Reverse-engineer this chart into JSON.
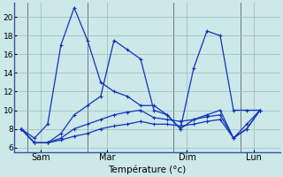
{
  "background_color": "#cce8e8",
  "line_color": "#1133bb",
  "grid_color": "#99bbbb",
  "ylim": [
    5.5,
    21.5
  ],
  "xlim": [
    -0.5,
    19.5
  ],
  "yticks": [
    6,
    8,
    10,
    12,
    14,
    16,
    18,
    20
  ],
  "xtick_positions": [
    1.5,
    6.5,
    12.5,
    17.5
  ],
  "xtick_labels": [
    "Sam",
    "Mar",
    "Dim",
    "Lun"
  ],
  "vline_positions": [
    0.5,
    5.0,
    11.5,
    16.5,
    19.5
  ],
  "xlabel": "Température (°c)",
  "line1_x": [
    0,
    1,
    2,
    3,
    4,
    5,
    6,
    7,
    8,
    9,
    10,
    11,
    12,
    13,
    14,
    15,
    16,
    17,
    18
  ],
  "line1_y": [
    8.0,
    7.0,
    8.5,
    17.0,
    21.0,
    17.5,
    13.0,
    12.0,
    11.5,
    10.5,
    10.5,
    9.5,
    8.0,
    14.5,
    18.5,
    18.0,
    10.0,
    10.0,
    10.0
  ],
  "line2_x": [
    0,
    1,
    2,
    3,
    4,
    5,
    6,
    7,
    8,
    9,
    10,
    11,
    12,
    13,
    14,
    15,
    16,
    17,
    18
  ],
  "line2_y": [
    8.0,
    6.5,
    6.5,
    7.5,
    9.5,
    10.5,
    11.5,
    17.5,
    16.5,
    15.5,
    10.0,
    9.5,
    8.0,
    9.0,
    9.5,
    10.0,
    7.0,
    8.0,
    10.0
  ],
  "line3_x": [
    0,
    1,
    2,
    3,
    4,
    5,
    6,
    7,
    8,
    9,
    10,
    11,
    12,
    13,
    14,
    15,
    16,
    17,
    18
  ],
  "line3_y": [
    8.0,
    6.5,
    6.5,
    7.0,
    8.0,
    8.5,
    9.0,
    9.5,
    9.8,
    10.0,
    9.2,
    9.0,
    8.8,
    9.0,
    9.3,
    9.5,
    7.0,
    8.5,
    10.0
  ],
  "line4_x": [
    0,
    1,
    2,
    3,
    4,
    5,
    6,
    7,
    8,
    9,
    10,
    11,
    12,
    13,
    14,
    15,
    16,
    17,
    18
  ],
  "line4_y": [
    8.0,
    6.5,
    6.5,
    6.8,
    7.2,
    7.5,
    8.0,
    8.3,
    8.5,
    8.8,
    8.5,
    8.5,
    8.3,
    8.5,
    8.8,
    9.0,
    7.0,
    8.0,
    10.0
  ]
}
